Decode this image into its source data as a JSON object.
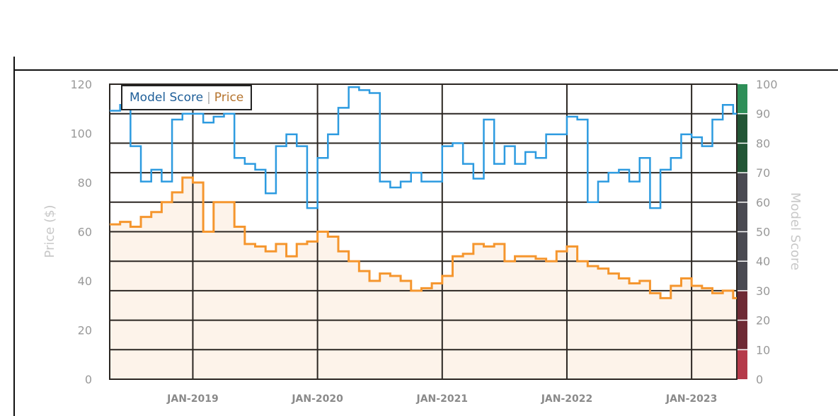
{
  "legend": {
    "model_score": "Model Score",
    "separator": "|",
    "price": "Price",
    "colors": {
      "model_score": "#1f5f99",
      "price": "#b5742e"
    }
  },
  "chart_data": {
    "type": "line",
    "title": "",
    "xlabel": "",
    "ylabel": "Price ($)",
    "y2label": "Model Score",
    "ylim": [
      0,
      120
    ],
    "y2lim": [
      0,
      100
    ],
    "yticks": [
      "0",
      "20",
      "40",
      "60",
      "80",
      "100",
      "120"
    ],
    "y2ticks": [
      "0",
      "10",
      "20",
      "30",
      "40",
      "50",
      "60",
      "70",
      "80",
      "90",
      "100"
    ],
    "xticks": [
      "JAN-2019",
      "JAN-2020",
      "JAN-2021",
      "JAN-2022",
      "JAN-2023"
    ],
    "grid": true,
    "legend_position": "top-left",
    "score_bands": [
      {
        "from": 0,
        "to": 10,
        "color": "#b53a4a"
      },
      {
        "from": 10,
        "to": 30,
        "color": "#6e2a35"
      },
      {
        "from": 30,
        "to": 70,
        "color": "#4a4a52"
      },
      {
        "from": 70,
        "to": 90,
        "color": "#225535"
      },
      {
        "from": 90,
        "to": 100,
        "color": "#2e8f58"
      }
    ],
    "x": [
      "2018-05",
      "2018-06",
      "2018-07",
      "2018-08",
      "2018-09",
      "2018-10",
      "2018-11",
      "2018-12",
      "2019-01",
      "2019-02",
      "2019-03",
      "2019-04",
      "2019-05",
      "2019-06",
      "2019-07",
      "2019-08",
      "2019-09",
      "2019-10",
      "2019-11",
      "2019-12",
      "2020-01",
      "2020-02",
      "2020-03",
      "2020-04",
      "2020-05",
      "2020-06",
      "2020-07",
      "2020-08",
      "2020-09",
      "2020-10",
      "2020-11",
      "2020-12",
      "2021-01",
      "2021-02",
      "2021-03",
      "2021-04",
      "2021-05",
      "2021-06",
      "2021-07",
      "2021-08",
      "2021-09",
      "2021-10",
      "2021-11",
      "2021-12",
      "2022-01",
      "2022-02",
      "2022-03",
      "2022-04",
      "2022-05",
      "2022-06",
      "2022-07",
      "2022-08",
      "2022-09",
      "2022-10",
      "2022-11",
      "2022-12",
      "2023-01",
      "2023-02",
      "2023-03",
      "2023-04",
      "2023-05"
    ],
    "series": [
      {
        "name": "Model Score",
        "axis": "right",
        "color": "#2d9be0",
        "values": [
          91,
          93,
          79,
          67,
          71,
          67,
          88,
          90,
          90,
          87,
          89,
          90,
          75,
          73,
          71,
          63,
          79,
          83,
          79,
          58,
          75,
          83,
          92,
          99,
          98,
          97,
          67,
          65,
          67,
          70,
          67,
          67,
          79,
          80,
          73,
          68,
          88,
          73,
          79,
          73,
          77,
          75,
          83,
          83,
          89,
          88,
          60,
          67,
          70,
          71,
          67,
          75,
          58,
          71,
          75,
          83,
          82,
          79,
          88,
          93,
          90
        ]
      },
      {
        "name": "Price",
        "axis": "left",
        "color": "#f5962e",
        "fill": "#fdf3ea",
        "values": [
          63,
          64,
          62,
          66,
          68,
          72,
          76,
          82,
          80,
          60,
          72,
          72,
          62,
          55,
          54,
          52,
          55,
          50,
          55,
          56,
          60,
          58,
          52,
          48,
          44,
          40,
          43,
          42,
          40,
          36,
          37,
          39,
          42,
          50,
          51,
          55,
          54,
          55,
          48,
          50,
          50,
          49,
          48,
          52,
          54,
          48,
          46,
          45,
          43,
          41,
          39,
          40,
          35,
          33,
          38,
          41,
          38,
          37,
          35,
          36,
          33
        ]
      }
    ]
  }
}
